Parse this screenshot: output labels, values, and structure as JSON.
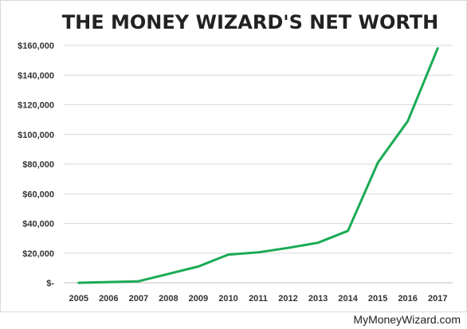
{
  "chart_data": {
    "type": "line",
    "title": "THE MONEY WIZARD'S NET WORTH",
    "xlabel": "",
    "ylabel": "",
    "categories": [
      "2005",
      "2006",
      "2007",
      "2008",
      "2009",
      "2010",
      "2011",
      "2012",
      "2013",
      "2014",
      "2015",
      "2016",
      "2017"
    ],
    "series": [
      {
        "values": [
          0,
          500,
          1000,
          6000,
          11000,
          19000,
          20500,
          23500,
          27000,
          35000,
          81000,
          109000,
          158000
        ],
        "color": "#1aaa55"
      }
    ],
    "ylim": [
      0,
      160000
    ],
    "yticks": [
      0,
      20000,
      40000,
      60000,
      80000,
      100000,
      120000,
      140000,
      160000
    ],
    "ytick_labels": [
      "$-",
      "$20,000",
      "$40,000",
      "$60,000",
      "$80,000",
      "$100,000",
      "$120,000",
      "$140,000",
      "$160,000"
    ],
    "grid": true,
    "legend": "none"
  },
  "footer": {
    "credit": "MyMoneyWizard.com"
  }
}
